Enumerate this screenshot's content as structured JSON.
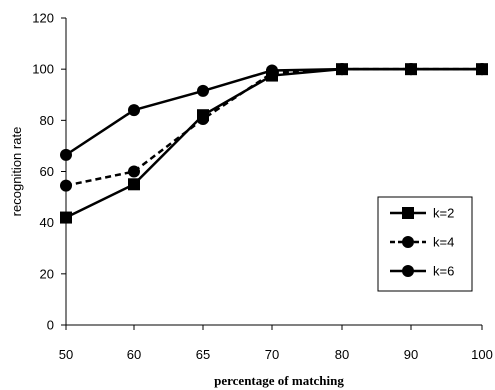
{
  "chart_data": {
    "type": "line",
    "xlabel": "percentage of matching",
    "ylabel": "recognition rate",
    "categories": [
      "50",
      "60",
      "65",
      "70",
      "80",
      "90",
      "100"
    ],
    "ylim": [
      0,
      120
    ],
    "yticks": [
      "0",
      "20",
      "40",
      "60",
      "80",
      "100",
      "120"
    ],
    "grid": false,
    "legend_position": "right",
    "series": [
      {
        "name": "k=2",
        "values": [
          42,
          55,
          82,
          97.5,
          100,
          100,
          100
        ],
        "marker": "square",
        "dash": "solid",
        "color": "#000000"
      },
      {
        "name": "k=4",
        "values": [
          54.5,
          60,
          80.5,
          98.5,
          100,
          100,
          100
        ],
        "marker": "circle",
        "dash": "dashed",
        "color": "#000000"
      },
      {
        "name": "k=6",
        "values": [
          66.5,
          84,
          91.5,
          99.5,
          100,
          100,
          100
        ],
        "marker": "circle",
        "dash": "solid",
        "color": "#000000"
      }
    ]
  }
}
